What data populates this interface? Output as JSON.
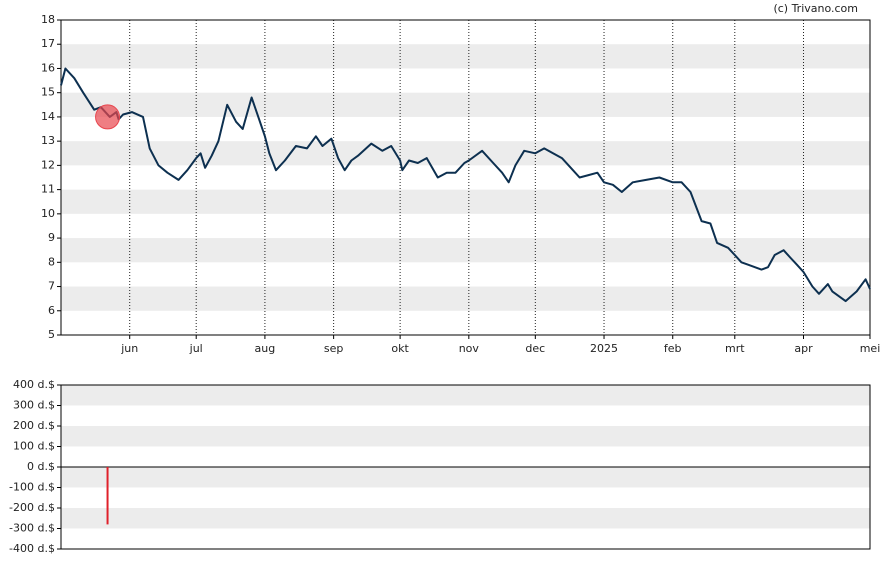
{
  "chart_data": [
    {
      "type": "line",
      "credit": "(c) Trivano.com",
      "xlim": [
        "2024-05-01",
        "2025-05-01"
      ],
      "xticks": [
        {
          "value": "2024-06-01",
          "label": "jun"
        },
        {
          "value": "2024-07-01",
          "label": "jul"
        },
        {
          "value": "2024-08-01",
          "label": "aug"
        },
        {
          "value": "2024-09-01",
          "label": "sep"
        },
        {
          "value": "2024-10-01",
          "label": "okt"
        },
        {
          "value": "2024-11-01",
          "label": "nov"
        },
        {
          "value": "2024-12-01",
          "label": "dec"
        },
        {
          "value": "2025-01-01",
          "label": "2025"
        },
        {
          "value": "2025-02-01",
          "label": "feb"
        },
        {
          "value": "2025-03-01",
          "label": "mrt"
        },
        {
          "value": "2025-04-01",
          "label": "apr"
        },
        {
          "value": "2025-05-01",
          "label": "mei"
        }
      ],
      "ylim": [
        5,
        18
      ],
      "yticks": [
        5,
        6,
        7,
        8,
        9,
        10,
        11,
        12,
        13,
        14,
        15,
        16,
        17,
        18
      ],
      "grid": true,
      "stripes": true,
      "x": [
        "2024-05-01",
        "2024-05-03",
        "2024-05-07",
        "2024-05-11",
        "2024-05-16",
        "2024-05-19",
        "2024-05-23",
        "2024-05-26",
        "2024-05-27",
        "2024-05-29",
        "2024-06-02",
        "2024-06-07",
        "2024-06-10",
        "2024-06-14",
        "2024-06-18",
        "2024-06-23",
        "2024-06-27",
        "2024-07-01",
        "2024-07-03",
        "2024-07-05",
        "2024-07-08",
        "2024-07-11",
        "2024-07-15",
        "2024-07-19",
        "2024-07-22",
        "2024-07-26",
        "2024-07-29",
        "2024-08-01",
        "2024-08-03",
        "2024-08-06",
        "2024-08-10",
        "2024-08-15",
        "2024-08-20",
        "2024-08-24",
        "2024-08-27",
        "2024-08-31",
        "2024-09-03",
        "2024-09-06",
        "2024-09-09",
        "2024-09-12",
        "2024-09-18",
        "2024-09-23",
        "2024-09-27",
        "2024-10-01",
        "2024-10-02",
        "2024-10-05",
        "2024-10-09",
        "2024-10-13",
        "2024-10-18",
        "2024-10-22",
        "2024-10-26",
        "2024-10-30",
        "2024-11-01",
        "2024-11-07",
        "2024-11-12",
        "2024-11-16",
        "2024-11-19",
        "2024-11-22",
        "2024-11-26",
        "2024-12-01",
        "2024-12-05",
        "2024-12-09",
        "2024-12-13",
        "2024-12-17",
        "2024-12-21",
        "2024-12-25",
        "2024-12-29",
        "2025-01-01",
        "2025-01-05",
        "2025-01-09",
        "2025-01-14",
        "2025-01-20",
        "2025-01-26",
        "2025-02-01",
        "2025-02-05",
        "2025-02-09",
        "2025-02-14",
        "2025-02-18",
        "2025-02-21",
        "2025-02-26",
        "2025-03-01",
        "2025-03-04",
        "2025-03-07",
        "2025-03-13",
        "2025-03-16",
        "2025-03-19",
        "2025-03-23",
        "2025-03-26",
        "2025-03-29",
        "2025-04-01",
        "2025-04-05",
        "2025-04-08",
        "2025-04-12",
        "2025-04-14",
        "2025-04-20",
        "2025-04-25",
        "2025-04-29",
        "2025-05-01"
      ],
      "series": [
        {
          "color": "#0d3050",
          "values": [
            15.3,
            16.0,
            15.6,
            15.0,
            14.3,
            14.4,
            14.0,
            14.2,
            13.9,
            14.1,
            14.2,
            14.0,
            12.7,
            12.0,
            11.7,
            11.4,
            11.8,
            12.3,
            12.5,
            11.9,
            12.4,
            13.0,
            14.5,
            13.8,
            13.5,
            14.8,
            14.0,
            13.2,
            12.5,
            11.8,
            12.2,
            12.8,
            12.7,
            13.2,
            12.8,
            13.1,
            12.3,
            11.8,
            12.2,
            12.4,
            12.9,
            12.6,
            12.8,
            12.2,
            11.8,
            12.2,
            12.1,
            12.3,
            11.5,
            11.7,
            11.7,
            12.1,
            12.2,
            12.6,
            12.1,
            11.7,
            11.3,
            12.0,
            12.6,
            12.5,
            12.7,
            12.5,
            12.3,
            11.9,
            11.5,
            11.6,
            11.7,
            11.3,
            11.2,
            10.9,
            11.3,
            11.4,
            11.5,
            11.3,
            11.3,
            10.9,
            9.7,
            9.6,
            8.8,
            8.6,
            8.3,
            8.0,
            7.9,
            7.7,
            7.8,
            8.3,
            8.5,
            8.2,
            7.9,
            7.6,
            7.0,
            6.7,
            7.1,
            6.8,
            6.4,
            6.8,
            7.3,
            6.9
          ]
        }
      ],
      "events": {
        "color": "#e8474f",
        "x": [
          "2024-05-22"
        ],
        "values": [
          14
        ]
      }
    },
    {
      "type": "bar",
      "xlim": [
        "2024-05-01",
        "2025-05-01"
      ],
      "ylim": [
        -400,
        400
      ],
      "yticks": [
        {
          "value": -400,
          "label": "-400 d.$"
        },
        {
          "value": -300,
          "label": "-300 d.$"
        },
        {
          "value": -200,
          "label": "-200 d.$"
        },
        {
          "value": -100,
          "label": "-100 d.$"
        },
        {
          "value": 0,
          "label": "0 d.$"
        },
        {
          "value": 100,
          "label": "100 d.$"
        },
        {
          "value": 200,
          "label": "200 d.$"
        },
        {
          "value": 300,
          "label": "300 d.$"
        },
        {
          "value": 400,
          "label": "400 d.$"
        }
      ],
      "stripes": true,
      "x": [
        "2024-05-22"
      ],
      "values": [
        -280
      ],
      "color": "#e0202a"
    }
  ]
}
